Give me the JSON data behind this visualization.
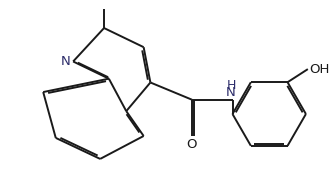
{
  "bg_color": "#ffffff",
  "line_color": "#1a1a1a",
  "text_color": "#1a1a1a",
  "nh_color": "#3a3a8a",
  "bond_lw": 1.4,
  "font_size": 9.5,
  "fig_width": 3.33,
  "fig_height": 1.86,
  "dpi": 100,
  "xlim": [
    0,
    10.5
  ],
  "ylim": [
    0,
    5.8
  ]
}
